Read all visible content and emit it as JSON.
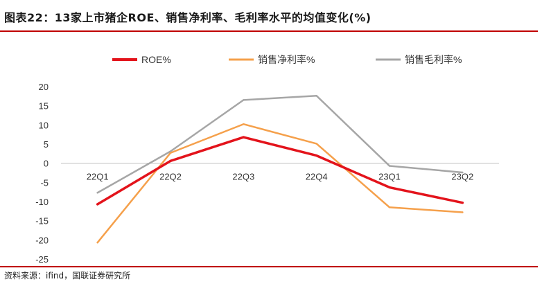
{
  "header": {
    "title": "图表22：13家上市猪企ROE、销售净利率、毛利率水平的均值变化(%)"
  },
  "footer": {
    "source": "资料来源：ifind，国联证券研究所"
  },
  "colors": {
    "rule": "#c00000",
    "roe": "#e3131b",
    "net": "#f5a04b",
    "gross": "#a6a6a6"
  },
  "chart_data": {
    "type": "line",
    "categories": [
      "22Q1",
      "22Q2",
      "22Q3",
      "22Q4",
      "23Q1",
      "23Q2"
    ],
    "series": [
      {
        "name": "ROE%",
        "color": "#e3131b",
        "values": [
          -10.7,
          0.6,
          6.8,
          2.0,
          -6.3,
          -10.3
        ]
      },
      {
        "name": "销售净利率%",
        "color": "#f5a04b",
        "values": [
          -20.7,
          2.7,
          10.2,
          5.1,
          -11.5,
          -12.8
        ]
      },
      {
        "name": "销售毛利率%",
        "color": "#a6a6a6",
        "values": [
          -7.7,
          3.1,
          16.5,
          17.6,
          -0.7,
          -2.4
        ]
      }
    ],
    "yticks": [
      20,
      15,
      10,
      5,
      0,
      -5,
      -10,
      -15,
      -20,
      -25
    ],
    "ylim": [
      -25,
      20
    ],
    "legend_position": "top"
  }
}
